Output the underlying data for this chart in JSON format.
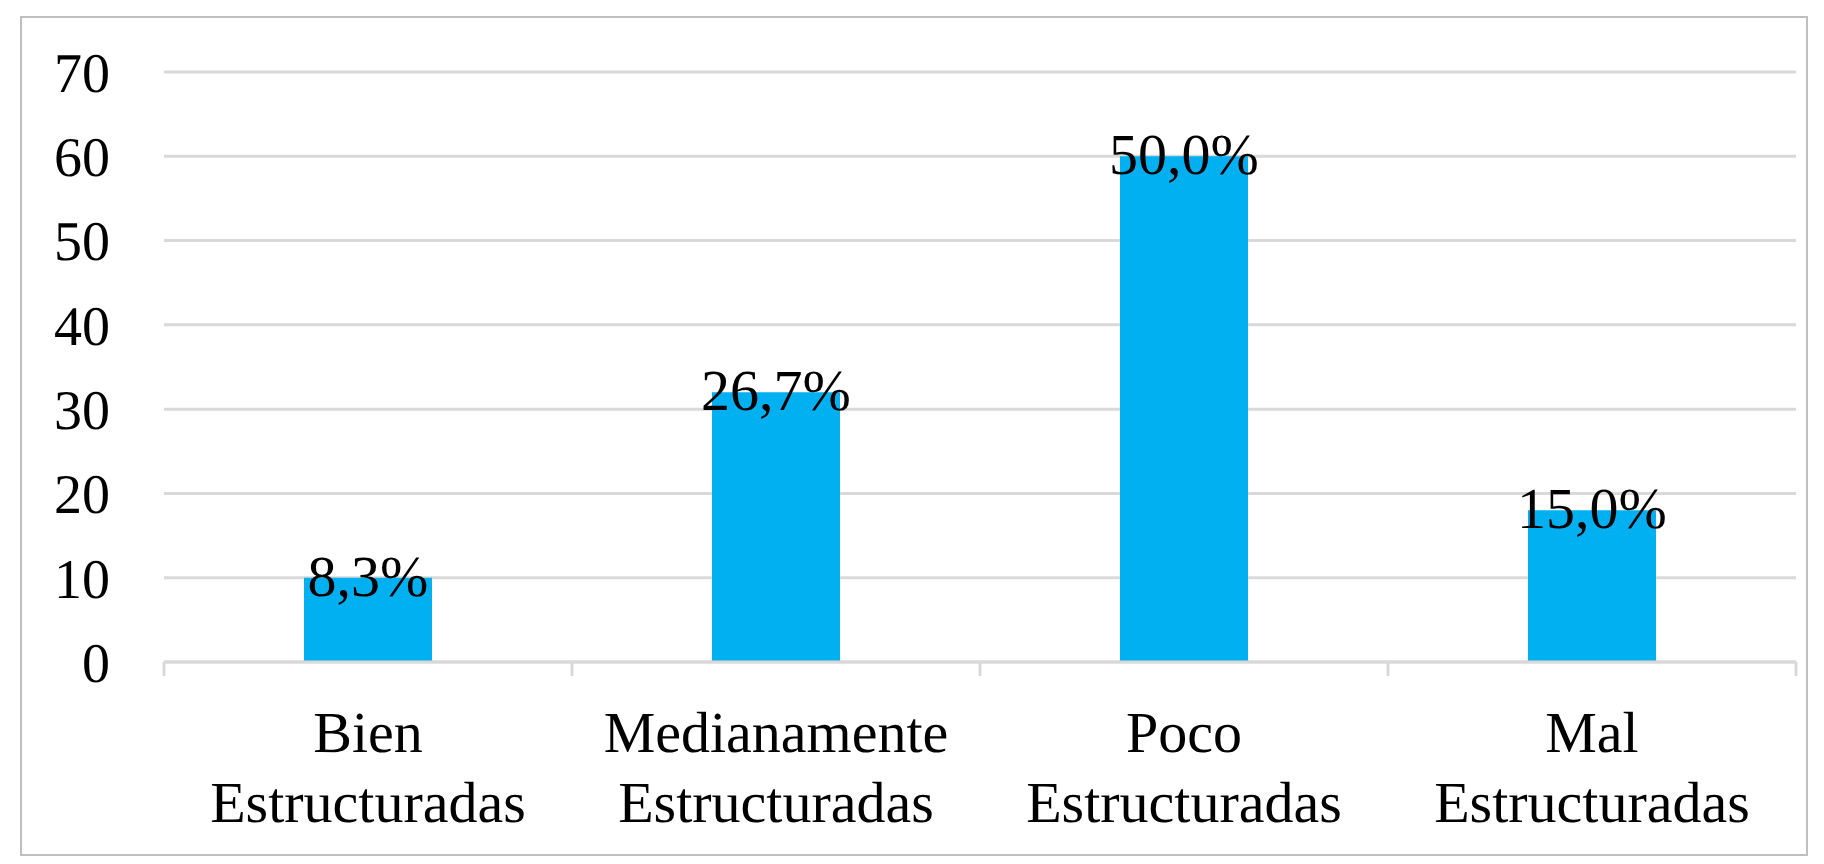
{
  "chart_data": {
    "type": "bar",
    "categories": [
      "Bien Estructuradas",
      "Medianamente Estructuradas",
      "Poco Estructuradas",
      "Mal Estructuradas"
    ],
    "values": [
      10,
      32,
      60,
      18
    ],
    "color": "#00b0f0",
    "annotations": [
      {
        "text": "8,3%",
        "x": "Bien Estructuradas",
        "y": 10
      },
      {
        "text": "26,7%",
        "x": "Medianamente Estructuradas",
        "y": 32
      },
      {
        "text": "50,0%",
        "x": "Poco Estructuradas",
        "y": 60
      },
      {
        "text": "15,0%",
        "x": "Mal Estructuradas",
        "y": 18
      }
    ],
    "ylim": [
      0,
      70
    ],
    "yticks": [
      0,
      10,
      20,
      30,
      40,
      50,
      60,
      70
    ],
    "grid": "y"
  }
}
